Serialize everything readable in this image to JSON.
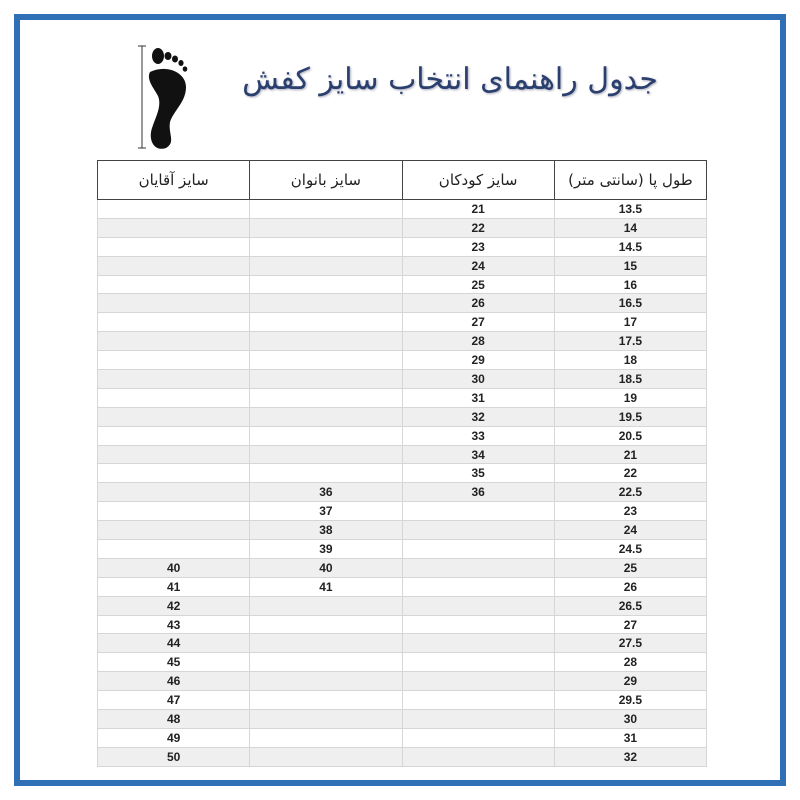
{
  "title": "جدول راهنمای انتخاب سایز کفش",
  "foot_icon": "foot-length-icon",
  "colors": {
    "border": "#2f6fb5",
    "title": "#2a3f6e"
  },
  "headers": [
    "طول پا (سانتی متر)",
    "سایز کودکان",
    "سایز بانوان",
    "سایز آقایان"
  ],
  "rows": [
    [
      "13.5",
      "21",
      "",
      ""
    ],
    [
      "14",
      "22",
      "",
      ""
    ],
    [
      "14.5",
      "23",
      "",
      ""
    ],
    [
      "15",
      "24",
      "",
      ""
    ],
    [
      "16",
      "25",
      "",
      ""
    ],
    [
      "16.5",
      "26",
      "",
      ""
    ],
    [
      "17",
      "27",
      "",
      ""
    ],
    [
      "17.5",
      "28",
      "",
      ""
    ],
    [
      "18",
      "29",
      "",
      ""
    ],
    [
      "18.5",
      "30",
      "",
      ""
    ],
    [
      "19",
      "31",
      "",
      ""
    ],
    [
      "19.5",
      "32",
      "",
      ""
    ],
    [
      "20.5",
      "33",
      "",
      ""
    ],
    [
      "21",
      "34",
      "",
      ""
    ],
    [
      "22",
      "35",
      "",
      ""
    ],
    [
      "22.5",
      "36",
      "36",
      ""
    ],
    [
      "23",
      "",
      "37",
      ""
    ],
    [
      "24",
      "",
      "38",
      ""
    ],
    [
      "24.5",
      "",
      "39",
      ""
    ],
    [
      "25",
      "",
      "40",
      "40"
    ],
    [
      "26",
      "",
      "41",
      "41"
    ],
    [
      "26.5",
      "",
      "",
      "42"
    ],
    [
      "27",
      "",
      "",
      "43"
    ],
    [
      "27.5",
      "",
      "",
      "44"
    ],
    [
      "28",
      "",
      "",
      "45"
    ],
    [
      "29",
      "",
      "",
      "46"
    ],
    [
      "29.5",
      "",
      "",
      "47"
    ],
    [
      "30",
      "",
      "",
      "48"
    ],
    [
      "31",
      "",
      "",
      "49"
    ],
    [
      "32",
      "",
      "",
      "50"
    ]
  ]
}
